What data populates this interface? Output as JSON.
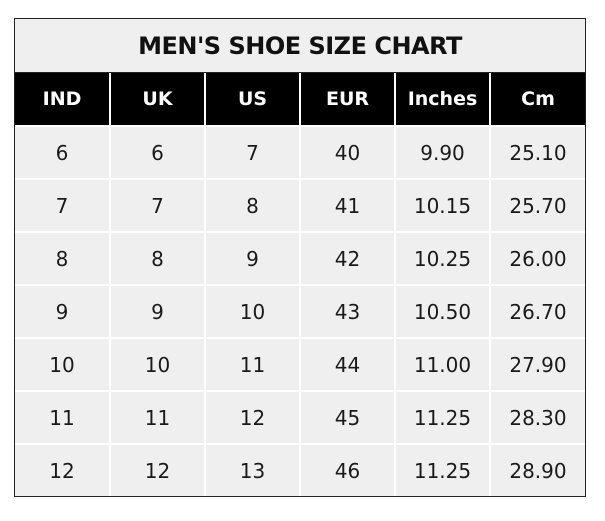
{
  "chart_data": {
    "type": "table",
    "title": "MEN'S SHOE SIZE CHART",
    "columns": [
      "IND",
      "UK",
      "US",
      "EUR",
      "Inches",
      "Cm"
    ],
    "rows": [
      [
        "6",
        "6",
        "7",
        "40",
        "9.90",
        "25.10"
      ],
      [
        "7",
        "7",
        "8",
        "41",
        "10.15",
        "25.70"
      ],
      [
        "8",
        "8",
        "9",
        "42",
        "10.25",
        "26.00"
      ],
      [
        "9",
        "9",
        "10",
        "43",
        "10.50",
        "26.70"
      ],
      [
        "10",
        "10",
        "11",
        "44",
        "11.00",
        "27.90"
      ],
      [
        "11",
        "11",
        "12",
        "45",
        "11.25",
        "28.30"
      ],
      [
        "12",
        "12",
        "13",
        "46",
        "11.25",
        "28.90"
      ]
    ],
    "colors": {
      "header_bg": "#000000",
      "header_text": "#ffffff",
      "cell_bg": "#efefef",
      "grid": "#ffffff"
    }
  }
}
